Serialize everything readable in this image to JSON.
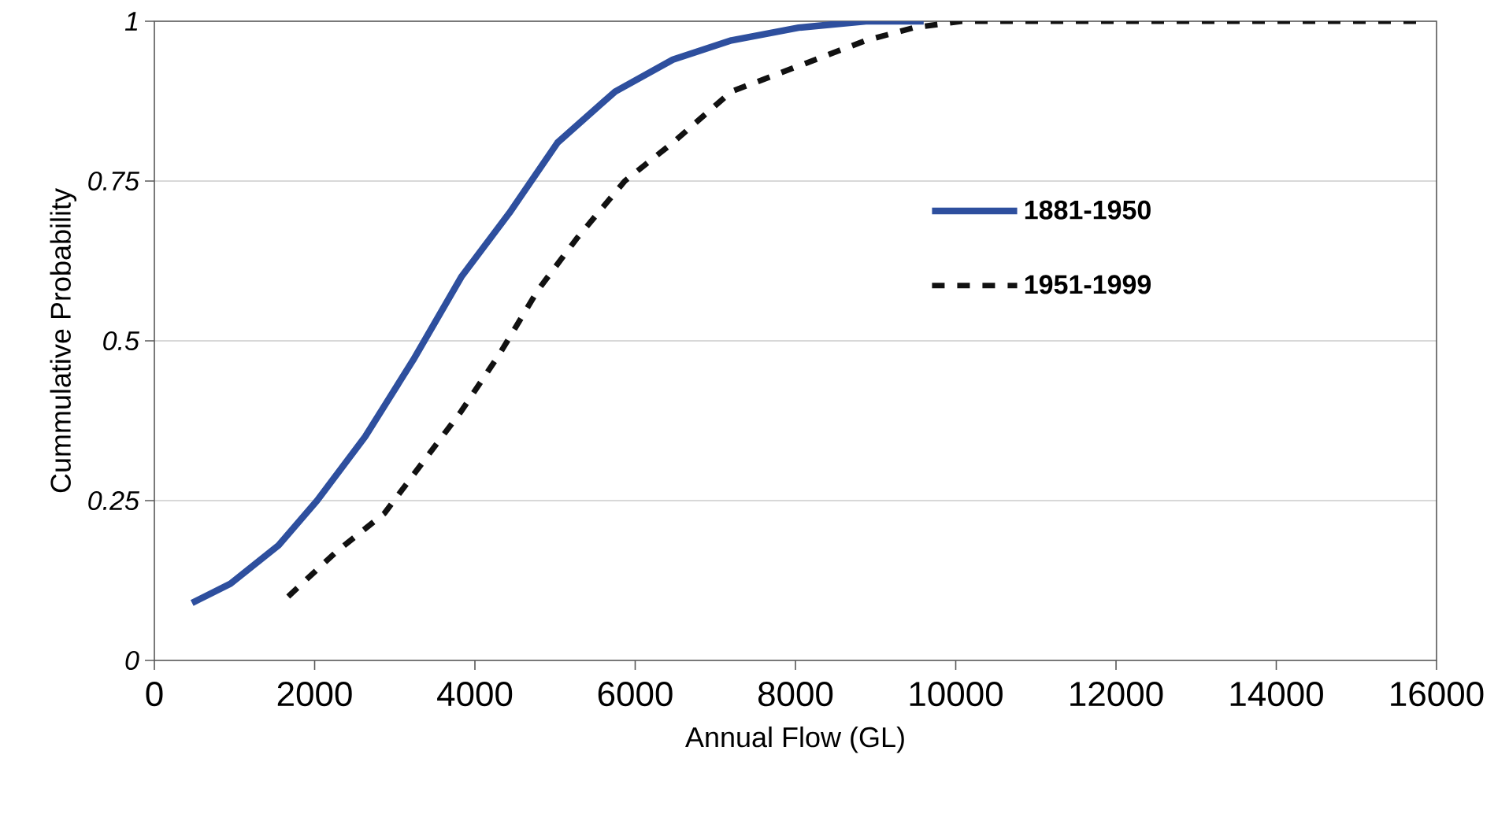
{
  "chart_data": {
    "type": "line",
    "xlabel": "Annual Flow (GL)",
    "ylabel": "Cummulative Probability",
    "xlim": [
      0,
      16000
    ],
    "xticks": [
      0,
      2000,
      4000,
      6000,
      8000,
      10000,
      12000,
      14000,
      16000
    ],
    "ylim": [
      0,
      1
    ],
    "yticks": [
      0,
      0.25,
      0.5,
      0.75,
      1
    ],
    "grid": "y",
    "legend": "right",
    "series": [
      {
        "name": "1881-1950",
        "color": "#2e4f9e",
        "line_style": "solid",
        "x": [
          470,
          950,
          1550,
          2030,
          2630,
          3230,
          3830,
          4430,
          5030,
          5750,
          6470,
          7200,
          8040,
          8880,
          9600
        ],
        "values": [
          0.09,
          0.12,
          0.18,
          0.25,
          0.35,
          0.47,
          0.6,
          0.7,
          0.81,
          0.89,
          0.94,
          0.97,
          0.99,
          1.0,
          1.0
        ]
      },
      {
        "name": "1951-1999",
        "color": "#111111",
        "line_style": "dashed",
        "x": [
          1670,
          2270,
          2870,
          3350,
          3830,
          4310,
          4790,
          5270,
          5870,
          6470,
          7200,
          8040,
          8880,
          9480,
          10080,
          11280,
          13680,
          15900
        ],
        "values": [
          0.1,
          0.17,
          0.23,
          0.31,
          0.39,
          0.48,
          0.58,
          0.66,
          0.75,
          0.81,
          0.89,
          0.93,
          0.97,
          0.99,
          1.0,
          1.0,
          1.0,
          1.0
        ]
      }
    ]
  }
}
